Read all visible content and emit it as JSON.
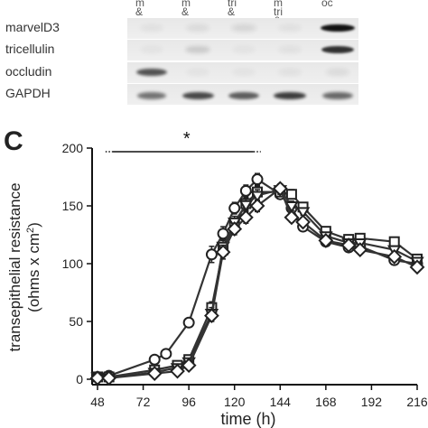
{
  "blot": {
    "lanes": [
      {
        "lines": [
          "m",
          "&"
        ]
      },
      {
        "lines": [
          "m",
          "&"
        ]
      },
      {
        "lines": [
          "tri",
          "&"
        ]
      },
      {
        "lines": [
          "m",
          "tri",
          "&"
        ]
      },
      {
        "lines": [
          "oc"
        ]
      }
    ],
    "rows": [
      {
        "label": "marvelD3",
        "bands": [
          0.05,
          0.08,
          0.1,
          0.05,
          1.0
        ]
      },
      {
        "label": "tricellulin",
        "bands": [
          0.03,
          0.15,
          0.03,
          0.05,
          0.85
        ]
      },
      {
        "label": "occludin",
        "bands": [
          0.7,
          0.03,
          0.03,
          0.05,
          0.08
        ]
      },
      {
        "label": "GAPDH",
        "bands": [
          0.55,
          0.75,
          0.65,
          0.8,
          0.6
        ]
      }
    ]
  },
  "panel_letter": "C",
  "significance_marker": "*",
  "chart_data": {
    "type": "line",
    "xlabel": "time (h)",
    "ylabel_line1": "transepithelial resistance",
    "ylabel_line2": "(ohms x cm",
    "ylabel_sup": "2",
    "ylabel_end": ")",
    "xlim": [
      48,
      216
    ],
    "ylim": [
      0,
      200
    ],
    "xticks": [
      48,
      72,
      96,
      120,
      144,
      168,
      192,
      216
    ],
    "xtick_labels": [
      "48",
      "72",
      "96",
      "120",
      "144",
      "168",
      "192",
      "216"
    ],
    "yticks": [
      0,
      50,
      100,
      150,
      200
    ],
    "significance_range": [
      56,
      130
    ],
    "series": [
      {
        "marker": "circle",
        "points": [
          [
            48,
            2
          ],
          [
            54,
            3
          ],
          [
            78,
            17
          ],
          [
            84,
            22
          ],
          [
            96,
            49
          ],
          [
            108,
            108
          ],
          [
            114,
            126
          ],
          [
            120,
            148
          ],
          [
            126,
            163
          ],
          [
            132,
            173
          ],
          [
            144,
            160
          ],
          [
            150,
            148
          ],
          [
            156,
            132
          ],
          [
            168,
            119
          ],
          [
            180,
            114
          ],
          [
            186,
            115
          ],
          [
            204,
            103
          ],
          [
            216,
            100
          ]
        ],
        "errors": [
          1,
          1,
          2,
          2,
          3,
          7,
          6,
          5,
          5,
          5,
          4,
          4,
          3,
          3,
          3,
          3,
          3,
          3
        ]
      },
      {
        "marker": "square",
        "points": [
          [
            48,
            2
          ],
          [
            54,
            2
          ],
          [
            78,
            8
          ],
          [
            90,
            12
          ],
          [
            96,
            17
          ],
          [
            108,
            62
          ],
          [
            114,
            112
          ],
          [
            120,
            133
          ],
          [
            126,
            152
          ],
          [
            132,
            162
          ],
          [
            144,
            162
          ],
          [
            150,
            160
          ],
          [
            156,
            149
          ],
          [
            168,
            128
          ],
          [
            180,
            121
          ],
          [
            186,
            122
          ],
          [
            204,
            119
          ],
          [
            216,
            104
          ]
        ],
        "errors": [
          1,
          1,
          2,
          2,
          2,
          5,
          6,
          5,
          5,
          5,
          4,
          4,
          3,
          3,
          3,
          3,
          3,
          3
        ]
      },
      {
        "marker": "triangle-down",
        "points": [
          [
            48,
            2
          ],
          [
            54,
            1
          ],
          [
            78,
            6
          ],
          [
            90,
            10
          ],
          [
            96,
            15
          ],
          [
            108,
            57
          ],
          [
            114,
            115
          ],
          [
            120,
            136
          ],
          [
            126,
            151
          ],
          [
            132,
            159
          ],
          [
            144,
            164
          ],
          [
            150,
            150
          ],
          [
            156,
            145
          ],
          [
            168,
            124
          ],
          [
            180,
            118
          ],
          [
            186,
            118
          ],
          [
            204,
            112
          ],
          [
            216,
            102
          ]
        ],
        "errors": [
          1,
          1,
          2,
          2,
          2,
          5,
          6,
          5,
          5,
          5,
          4,
          4,
          3,
          3,
          3,
          3,
          3,
          3
        ]
      },
      {
        "marker": "diamond",
        "points": [
          [
            48,
            1
          ],
          [
            54,
            1
          ],
          [
            78,
            5
          ],
          [
            90,
            7
          ],
          [
            96,
            12
          ],
          [
            108,
            55
          ],
          [
            114,
            110
          ],
          [
            120,
            130
          ],
          [
            126,
            140
          ],
          [
            132,
            150
          ],
          [
            144,
            165
          ],
          [
            150,
            140
          ],
          [
            156,
            136
          ],
          [
            168,
            120
          ],
          [
            180,
            116
          ],
          [
            186,
            112
          ],
          [
            204,
            106
          ],
          [
            216,
            97
          ]
        ],
        "errors": [
          1,
          1,
          2,
          2,
          2,
          5,
          6,
          5,
          5,
          5,
          4,
          4,
          3,
          3,
          3,
          3,
          3,
          3
        ]
      }
    ]
  }
}
